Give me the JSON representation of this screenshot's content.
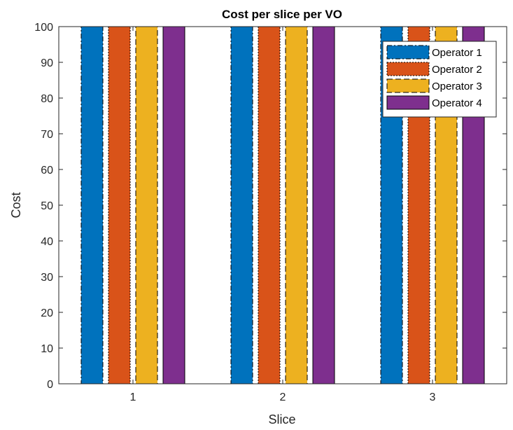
{
  "chart_data": {
    "type": "bar",
    "title": "Cost per slice per VO",
    "xlabel": "Slice",
    "ylabel": "Cost",
    "categories": [
      "1",
      "2",
      "3"
    ],
    "ylim": [
      0,
      100
    ],
    "yticks": [
      0,
      10,
      20,
      30,
      40,
      50,
      60,
      70,
      80,
      90,
      100
    ],
    "grid": false,
    "legend_position": "top-right",
    "series": [
      {
        "name": "Operator 1",
        "values": [
          100,
          100,
          100
        ],
        "color": "#0072BD",
        "line_style": "dash-dot"
      },
      {
        "name": "Operator 2",
        "values": [
          100,
          100,
          100
        ],
        "color": "#D95319",
        "line_style": "dotted"
      },
      {
        "name": "Operator 3",
        "values": [
          100,
          100,
          100
        ],
        "color": "#EDB120",
        "line_style": "dashed"
      },
      {
        "name": "Operator 4",
        "values": [
          100,
          100,
          100
        ],
        "color": "#7E2F8E",
        "line_style": "solid"
      }
    ]
  }
}
